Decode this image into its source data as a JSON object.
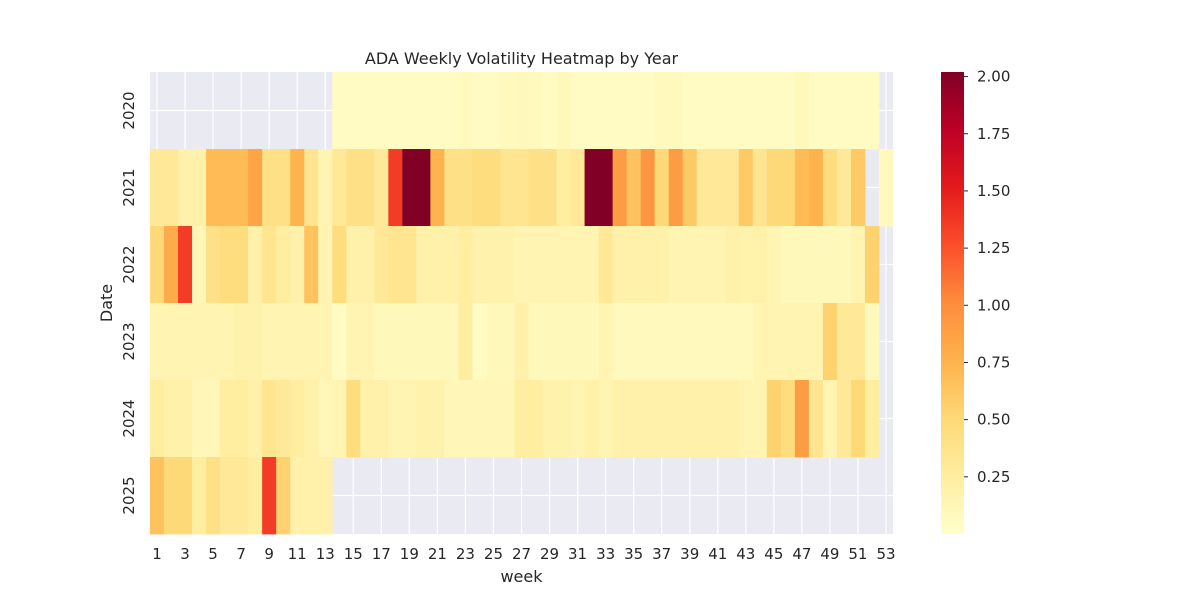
{
  "chart_data": {
    "type": "heatmap",
    "title": "ADA Weekly Volatility Heatmap by Year",
    "xlabel": "week",
    "ylabel": "Date",
    "years": [
      "2020",
      "2021",
      "2022",
      "2023",
      "2024",
      "2025"
    ],
    "weeks_range": [
      1,
      53
    ],
    "x_tick_labels": [
      "1",
      "3",
      "5",
      "7",
      "9",
      "11",
      "13",
      "15",
      "17",
      "19",
      "21",
      "23",
      "25",
      "27",
      "29",
      "31",
      "33",
      "35",
      "37",
      "39",
      "41",
      "43",
      "45",
      "47",
      "49",
      "51",
      "53"
    ],
    "colorbar": {
      "vmin": 0.0,
      "vmax": 2.02,
      "ticks": [
        2.0,
        1.75,
        1.5,
        1.25,
        1.0,
        0.75,
        0.5,
        0.25
      ],
      "tick_labels": [
        "2.00",
        "1.75",
        "1.50",
        "1.25",
        "1.00",
        "0.75",
        "0.50",
        "0.25"
      ],
      "colormap": "YlOrRd"
    },
    "grid": true,
    "background_color": "#eaeaf2",
    "values": [
      [
        null,
        null,
        null,
        null,
        null,
        null,
        null,
        null,
        null,
        null,
        null,
        null,
        null,
        0.06,
        0.06,
        0.06,
        0.06,
        0.06,
        0.06,
        0.06,
        0.06,
        0.06,
        0.08,
        0.06,
        0.06,
        0.08,
        0.1,
        0.08,
        0.06,
        0.1,
        0.06,
        0.06,
        0.06,
        0.06,
        0.06,
        0.06,
        0.08,
        0.08,
        0.06,
        0.05,
        0.05,
        0.05,
        0.05,
        0.05,
        0.05,
        0.05,
        0.1,
        0.06,
        0.06,
        0.06,
        0.06,
        0.06,
        null
      ],
      [
        0.3,
        0.3,
        0.2,
        0.2,
        0.7,
        0.7,
        0.7,
        0.85,
        0.4,
        0.4,
        0.75,
        0.35,
        0.15,
        0.3,
        0.4,
        0.4,
        0.3,
        1.35,
        2.02,
        2.02,
        0.75,
        0.4,
        0.4,
        0.45,
        0.45,
        0.35,
        0.35,
        0.4,
        0.4,
        0.25,
        0.3,
        2.02,
        2.02,
        0.9,
        0.65,
        0.95,
        0.5,
        0.9,
        0.6,
        0.3,
        0.3,
        0.3,
        0.6,
        0.35,
        0.5,
        0.5,
        0.7,
        0.75,
        0.45,
        0.3,
        0.6,
        null,
        0.08
      ],
      [
        0.5,
        0.8,
        1.35,
        0.12,
        0.4,
        0.45,
        0.45,
        0.2,
        0.35,
        0.25,
        0.2,
        0.65,
        0.15,
        0.45,
        0.2,
        0.2,
        0.3,
        0.35,
        0.35,
        0.2,
        0.2,
        0.2,
        0.25,
        0.18,
        0.18,
        0.18,
        0.15,
        0.15,
        0.15,
        0.15,
        0.15,
        0.15,
        0.3,
        0.2,
        0.2,
        0.2,
        0.2,
        0.15,
        0.15,
        0.15,
        0.15,
        0.2,
        0.18,
        0.2,
        0.15,
        0.1,
        0.1,
        0.1,
        0.1,
        0.1,
        0.15,
        0.55,
        null
      ],
      [
        0.15,
        0.15,
        0.15,
        0.15,
        0.15,
        0.15,
        0.18,
        0.18,
        0.15,
        0.15,
        0.15,
        0.15,
        0.15,
        0.05,
        0.15,
        0.15,
        0.1,
        0.1,
        0.1,
        0.1,
        0.1,
        0.1,
        0.25,
        0.05,
        0.1,
        0.1,
        0.2,
        0.1,
        0.1,
        0.1,
        0.1,
        0.1,
        0.15,
        0.08,
        0.08,
        0.08,
        0.08,
        0.08,
        0.08,
        0.08,
        0.08,
        0.08,
        0.08,
        0.15,
        0.15,
        0.15,
        0.15,
        0.15,
        0.55,
        0.3,
        0.3,
        0.1,
        null
      ],
      [
        0.25,
        0.2,
        0.2,
        0.12,
        0.12,
        0.25,
        0.25,
        0.2,
        0.35,
        0.3,
        0.25,
        0.2,
        0.12,
        0.15,
        0.45,
        0.2,
        0.2,
        0.15,
        0.15,
        0.18,
        0.18,
        0.12,
        0.12,
        0.12,
        0.12,
        0.12,
        0.25,
        0.25,
        0.18,
        0.18,
        0.15,
        0.2,
        0.15,
        0.2,
        0.2,
        0.2,
        0.2,
        0.2,
        0.2,
        0.2,
        0.2,
        0.2,
        0.15,
        0.15,
        0.55,
        0.45,
        0.9,
        0.35,
        0.15,
        0.3,
        0.5,
        0.25,
        null
      ],
      [
        0.65,
        0.5,
        0.5,
        0.25,
        0.4,
        0.3,
        0.3,
        0.25,
        1.35,
        0.55,
        0.2,
        0.2,
        0.2,
        null,
        null,
        null,
        null,
        null,
        null,
        null,
        null,
        null,
        null,
        null,
        null,
        null,
        null,
        null,
        null,
        null,
        null,
        null,
        null,
        null,
        null,
        null,
        null,
        null,
        null,
        null,
        null,
        null,
        null,
        null,
        null,
        null,
        null,
        null,
        null,
        null,
        null,
        null,
        null
      ]
    ]
  }
}
